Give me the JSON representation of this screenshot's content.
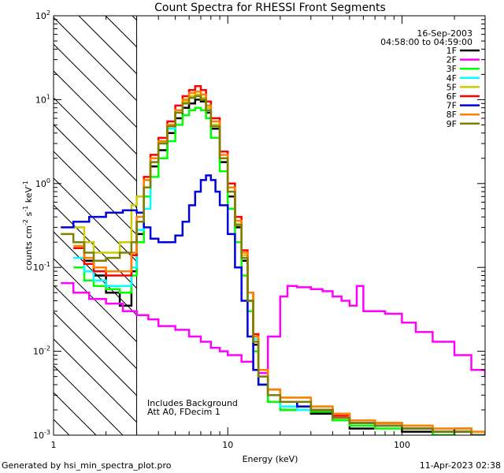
{
  "chart_data": {
    "type": "line",
    "title": "Count Spectra for RHESSI Front Segments",
    "xlabel": "Energy (keV)",
    "ylabel": "counts cm^-2 s^-1 keV^-1",
    "ylabel_parts": {
      "base": "counts cm",
      "e1": "-2",
      "mid": " s",
      "e2": "-1",
      "mid2": " keV",
      "e3": "-1"
    },
    "x_scale": "log",
    "y_scale": "log",
    "xlim": [
      1,
      300
    ],
    "ylim": [
      0.001,
      100
    ],
    "x_ticks": [
      {
        "value": 1,
        "label": "1"
      },
      {
        "value": 10,
        "label": "10"
      },
      {
        "value": 100,
        "label": "100"
      }
    ],
    "y_ticks": [
      {
        "value": 100,
        "base": "10",
        "exp": "2"
      },
      {
        "value": 10,
        "base": "10",
        "exp": "1"
      },
      {
        "value": 1,
        "base": "10",
        "exp": "0"
      },
      {
        "value": 0.1,
        "base": "10",
        "exp": "-1"
      },
      {
        "value": 0.01,
        "base": "10",
        "exp": "-2"
      },
      {
        "value": 0.001,
        "base": "10",
        "exp": "-3"
      }
    ],
    "hatched_region": {
      "x_from": 1,
      "x_to": 3
    },
    "info": {
      "date": "16-Sep-2003",
      "time_range": "04:58:00 to 04:59:00"
    },
    "annotations": [
      "Includes Background",
      "Att A0, FDecim 1"
    ],
    "footer_left": "Generated by hsi_min_spectra_plot.pro",
    "footer_right": "11-Apr-2023 02:38",
    "series": [
      {
        "name": "1F",
        "color": "#000000",
        "x": [
          1.3,
          1.5,
          1.7,
          2.0,
          2.4,
          2.8,
          3.0,
          3.3,
          3.6,
          4.0,
          4.5,
          5.0,
          5.5,
          6.0,
          6.5,
          7.0,
          7.5,
          8.0,
          9.0,
          10,
          11,
          12,
          13,
          14,
          15,
          17,
          20,
          25,
          30,
          40,
          50,
          70,
          100,
          150,
          200,
          250,
          300
        ],
        "y": [
          0.2,
          0.12,
          0.08,
          0.05,
          0.035,
          0.09,
          0.25,
          0.9,
          1.6,
          2.5,
          4,
          6,
          8,
          9,
          10,
          9.5,
          7,
          4.5,
          1.8,
          0.7,
          0.3,
          0.12,
          0.04,
          0.012,
          0.004,
          0.0025,
          0.002,
          0.0025,
          0.0018,
          0.0015,
          0.0012,
          0.0014,
          0.0011,
          0.001,
          0.0012,
          0.001,
          0.001
        ]
      },
      {
        "name": "2F",
        "color": "#ff00ff",
        "x": [
          1.1,
          1.3,
          1.6,
          2.0,
          2.5,
          3.0,
          3.5,
          4.0,
          5.0,
          6.0,
          7.0,
          8.0,
          9.0,
          10,
          12,
          14,
          15,
          17,
          20,
          22,
          25,
          30,
          35,
          40,
          45,
          50,
          55,
          60,
          70,
          80,
          100,
          120,
          150,
          200,
          250,
          300
        ],
        "y": [
          0.065,
          0.05,
          0.042,
          0.037,
          0.03,
          0.027,
          0.024,
          0.02,
          0.018,
          0.015,
          0.013,
          0.011,
          0.01,
          0.009,
          0.0075,
          0.006,
          0.0055,
          0.015,
          0.045,
          0.06,
          0.058,
          0.055,
          0.052,
          0.045,
          0.04,
          0.035,
          0.06,
          0.03,
          0.03,
          0.028,
          0.022,
          0.017,
          0.013,
          0.009,
          0.006,
          0.005
        ]
      },
      {
        "name": "3F",
        "color": "#00ff00",
        "x": [
          1.3,
          1.5,
          1.7,
          2.0,
          2.4,
          2.8,
          3.0,
          3.3,
          3.6,
          4.0,
          4.5,
          5.0,
          5.5,
          6.0,
          6.5,
          7.0,
          7.5,
          8.0,
          9.0,
          10,
          11,
          12,
          13,
          14,
          15,
          17,
          20,
          25,
          30,
          40,
          50,
          70,
          100,
          150,
          200,
          250,
          300
        ],
        "y": [
          0.1,
          0.07,
          0.06,
          0.055,
          0.05,
          0.08,
          0.2,
          0.7,
          1.2,
          2,
          3.2,
          5,
          6.5,
          7.5,
          8,
          7.5,
          6,
          3.5,
          1.4,
          0.5,
          0.2,
          0.08,
          0.03,
          0.01,
          0.004,
          0.0025,
          0.002,
          0.0022,
          0.0019,
          0.0015,
          0.0013,
          0.0012,
          0.0012,
          0.001,
          0.0011,
          0.001,
          0.001
        ]
      },
      {
        "name": "4F",
        "color": "#00ffff",
        "x": [
          1.3,
          1.5,
          1.7,
          2.0,
          2.4,
          2.8,
          3.0,
          3.3,
          3.6,
          4.0,
          4.5,
          5.0,
          5.5,
          6.0,
          6.5,
          7.0,
          7.5,
          8.0,
          9.0,
          10,
          11,
          12,
          13,
          14,
          15,
          17,
          20,
          25,
          30,
          40,
          50,
          70,
          100,
          150,
          200,
          250,
          300
        ],
        "y": [
          0.13,
          0.09,
          0.07,
          0.06,
          0.06,
          0.1,
          0.28,
          0.5,
          1.8,
          3,
          4.5,
          7,
          9,
          10.5,
          11,
          10,
          8,
          5,
          2,
          0.8,
          0.33,
          0.13,
          0.04,
          0.014,
          0.005,
          0.003,
          0.0022,
          0.002,
          0.002,
          0.0016,
          0.0014,
          0.0013,
          0.0012,
          0.0011,
          0.0011,
          0.001,
          0.001
        ]
      },
      {
        "name": "5F",
        "color": "#cccc00",
        "x": [
          1.3,
          1.5,
          1.7,
          2.0,
          2.4,
          2.8,
          3.0,
          3.3,
          3.6,
          4.0,
          4.5,
          5.0,
          5.5,
          6.0,
          6.5,
          7.0,
          7.5,
          8.0,
          9.0,
          10,
          11,
          12,
          13,
          14,
          15,
          17,
          20,
          25,
          30,
          40,
          50,
          70,
          100,
          150,
          200,
          250,
          300
        ],
        "y": [
          0.3,
          0.2,
          0.15,
          0.15,
          0.2,
          0.55,
          0.7,
          1.1,
          2,
          3.2,
          5,
          7.5,
          9.5,
          11,
          11.5,
          10.5,
          8,
          5,
          2,
          0.8,
          0.33,
          0.14,
          0.05,
          0.015,
          0.006,
          0.0035,
          0.0028,
          0.0028,
          0.0022,
          0.0018,
          0.0015,
          0.0014,
          0.0013,
          0.0012,
          0.0012,
          0.0011,
          0.001
        ]
      },
      {
        "name": "6F",
        "color": "#ff0000",
        "x": [
          1.3,
          1.5,
          1.7,
          2.0,
          2.4,
          2.8,
          3.0,
          3.3,
          3.6,
          4.0,
          4.5,
          5.0,
          5.5,
          6.0,
          6.5,
          7.0,
          7.5,
          8.0,
          9.0,
          10,
          11,
          12,
          13,
          14,
          15,
          17,
          20,
          25,
          30,
          40,
          50,
          70,
          100,
          150,
          200,
          250,
          300
        ],
        "y": [
          0.17,
          0.11,
          0.09,
          0.08,
          0.08,
          0.14,
          0.35,
          1.2,
          2.2,
          3.5,
          5.5,
          8.5,
          11,
          13,
          14.5,
          13,
          9.5,
          6,
          2.4,
          1,
          0.4,
          0.16,
          0.05,
          0.016,
          0.006,
          0.0035,
          0.0025,
          0.0025,
          0.002,
          0.0017,
          0.0015,
          0.0013,
          0.0012,
          0.0011,
          0.0011,
          0.001,
          0.001
        ]
      },
      {
        "name": "7F",
        "color": "#0000dd",
        "x": [
          1.1,
          1.3,
          1.6,
          2.0,
          2.5,
          3.0,
          3.3,
          3.6,
          4.0,
          4.5,
          5.0,
          5.5,
          6.0,
          6.5,
          7.0,
          7.5,
          8.0,
          8.5,
          9.0,
          10,
          11,
          12,
          13,
          14,
          15,
          17,
          20,
          25,
          30,
          40,
          50,
          70,
          100,
          150,
          200,
          250,
          300
        ],
        "y": [
          0.3,
          0.35,
          0.4,
          0.45,
          0.48,
          0.45,
          0.3,
          0.22,
          0.2,
          0.2,
          0.24,
          0.35,
          0.55,
          0.8,
          1.1,
          1.25,
          1.1,
          0.8,
          0.55,
          0.25,
          0.1,
          0.04,
          0.015,
          0.006,
          0.004,
          0.003,
          0.0025,
          0.0022,
          0.002,
          0.0016,
          0.0014,
          0.0013,
          0.0012,
          0.0011,
          0.0011,
          0.001,
          0.001
        ]
      },
      {
        "name": "8F",
        "color": "#ff8000",
        "x": [
          1.3,
          1.5,
          1.7,
          2.0,
          2.4,
          2.8,
          3.0,
          3.3,
          3.6,
          4.0,
          4.5,
          5.0,
          5.5,
          6.0,
          6.5,
          7.0,
          7.5,
          8.0,
          9.0,
          10,
          11,
          12,
          13,
          14,
          15,
          17,
          20,
          25,
          30,
          40,
          50,
          70,
          100,
          150,
          200,
          250,
          300
        ],
        "y": [
          0.18,
          0.13,
          0.1,
          0.09,
          0.09,
          0.15,
          0.4,
          1.1,
          2,
          3.2,
          5,
          7.5,
          10,
          12,
          12.5,
          11.5,
          8.5,
          5.5,
          2.2,
          0.9,
          0.36,
          0.15,
          0.05,
          0.015,
          0.006,
          0.0035,
          0.0028,
          0.0028,
          0.0022,
          0.0018,
          0.0015,
          0.0014,
          0.0013,
          0.0012,
          0.0012,
          0.0011,
          0.001
        ]
      },
      {
        "name": "9F",
        "color": "#808000",
        "x": [
          1.1,
          1.3,
          1.5,
          1.7,
          2.0,
          2.4,
          2.8,
          3.0,
          3.3,
          3.6,
          4.0,
          4.5,
          5.0,
          5.5,
          6.0,
          6.5,
          7.0,
          7.5,
          8.0,
          9.0,
          10,
          11,
          12,
          13,
          14,
          15,
          17,
          20,
          25,
          30,
          40,
          50,
          70,
          100,
          150,
          200,
          250,
          300
        ],
        "y": [
          0.25,
          0.2,
          0.15,
          0.12,
          0.13,
          0.15,
          0.2,
          0.35,
          0.9,
          1.8,
          3,
          4.8,
          7,
          9,
          10.5,
          11,
          10,
          7.5,
          4.8,
          2,
          0.8,
          0.32,
          0.13,
          0.04,
          0.013,
          0.005,
          0.003,
          0.0025,
          0.0025,
          0.002,
          0.0016,
          0.0014,
          0.0013,
          0.0012,
          0.0011,
          0.0011,
          0.001,
          0.001
        ]
      }
    ]
  }
}
